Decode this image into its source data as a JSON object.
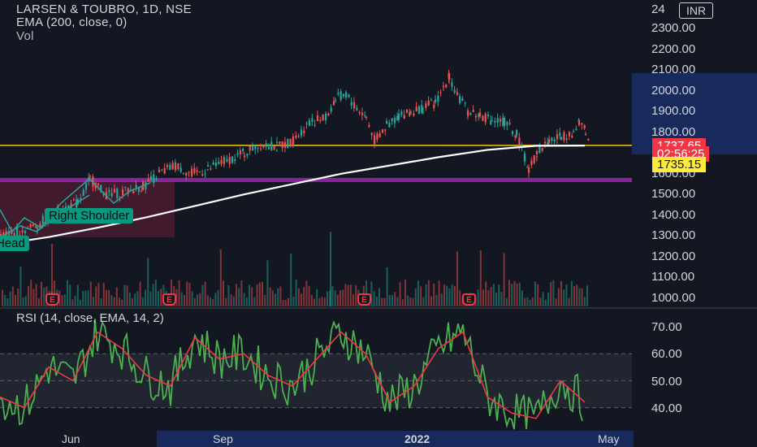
{
  "header": {
    "symbol": "LARSEN & TOUBRO, 1D, NSE",
    "ema": "EMA (200, close, 0)",
    "vol": "Vol",
    "currency": "INR"
  },
  "price_axis": {
    "labels": [
      "2400.00",
      "2300.00",
      "2200.00",
      "2100.00",
      "2000.00",
      "1900.00",
      "1800.00",
      "1700.00",
      "1600.00",
      "1500.00",
      "1400.00",
      "1300.00",
      "1200.00",
      "1100.00",
      "1000.00"
    ],
    "top_partial": "24",
    "last_price": "1737.65",
    "countdown": "02:56:25",
    "ema_value": "1735.15"
  },
  "rsi": {
    "title": "RSI (14, close, EMA, 14, 2)",
    "labels": [
      "70.00",
      "60.00",
      "50.00",
      "40.00"
    ]
  },
  "time_axis": {
    "labels": [
      "Jun",
      "Sep",
      "2022",
      "May"
    ]
  },
  "annotations": {
    "right_shoulder": "Right Shoulder",
    "head": "Head",
    "earnings_marker": "E"
  },
  "colors": {
    "background": "#131722",
    "up": "#26a69a",
    "down": "#ef5350",
    "ema": "#ffffff",
    "rsi_line": "#4caf50",
    "rsi_ema": "#f23645",
    "support": "#9c27b0",
    "resistance": "#f5c518",
    "highlight": "#1e3a8a"
  },
  "chart_data": {
    "type": "line",
    "title": "LARSEN & TOUBRO, 1D, NSE",
    "y_range": [
      1000,
      2420
    ],
    "resistance_level": 1737,
    "support_zone": [
      1565,
      1580
    ],
    "series": [
      {
        "name": "EMA (200, close, 0)",
        "x": [
          0,
          60,
          120,
          180,
          240,
          300,
          360,
          420,
          480,
          540,
          600,
          660,
          720
        ],
        "values": [
          1260,
          1295,
          1340,
          1390,
          1445,
          1500,
          1550,
          1600,
          1640,
          1680,
          1715,
          1735,
          1736
        ]
      },
      {
        "name": "RSI (14, close, EMA, 14, 2)",
        "x": [
          0,
          30,
          60,
          90,
          120,
          150,
          180,
          210,
          240,
          270,
          300,
          330,
          360,
          390,
          420,
          450,
          480,
          510,
          540,
          570,
          600,
          630,
          660,
          690,
          720
        ],
        "values": [
          44,
          40,
          55,
          50,
          68,
          62,
          52,
          48,
          66,
          58,
          60,
          52,
          48,
          58,
          68,
          60,
          42,
          48,
          62,
          68,
          44,
          38,
          36,
          50,
          42
        ]
      }
    ]
  }
}
